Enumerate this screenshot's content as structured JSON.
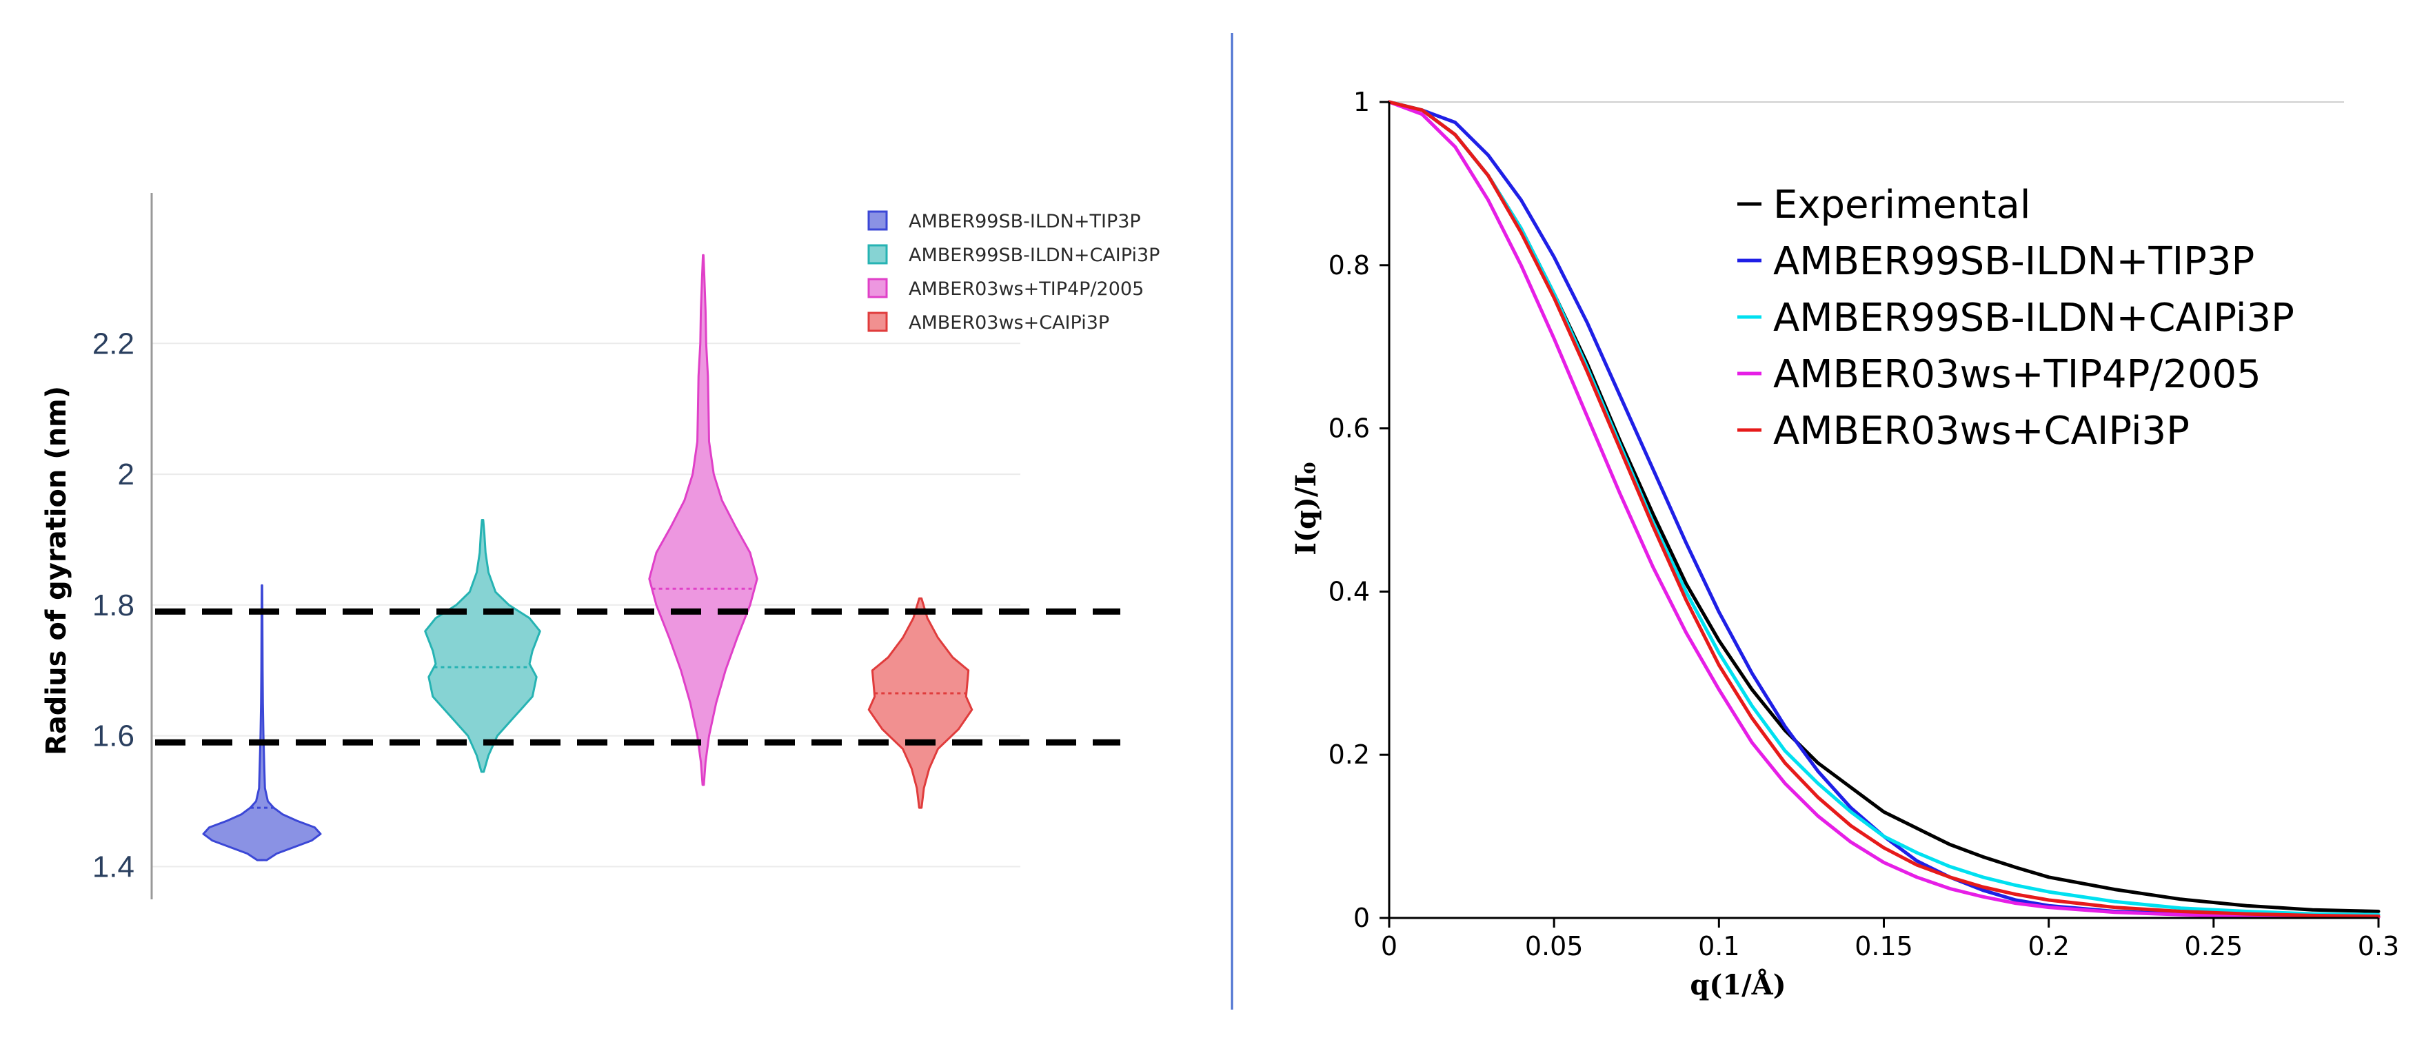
{
  "chart_data": [
    {
      "type": "violin",
      "title": "",
      "xlabel": "",
      "ylabel": "Radius of gyration (nm)",
      "ylim": [
        1.35,
        2.43
      ],
      "yticks": [
        "1.4",
        "1.6",
        "1.8",
        "2",
        "2.2"
      ],
      "grid": true,
      "legend_position": "top-right",
      "reference_lines": [
        1.59,
        1.79
      ],
      "series": [
        {
          "name": "AMBER99SB-ILDN+TIP3P",
          "color": "#3b47d6",
          "fill": "#8a92e4",
          "min": 1.41,
          "max": 1.83,
          "median": 1.49,
          "profile": [
            [
              1.41,
              0.08
            ],
            [
              1.42,
              0.25
            ],
            [
              1.43,
              0.55
            ],
            [
              1.44,
              0.85
            ],
            [
              1.45,
              1.0
            ],
            [
              1.46,
              0.9
            ],
            [
              1.47,
              0.6
            ],
            [
              1.48,
              0.35
            ],
            [
              1.49,
              0.2
            ],
            [
              1.5,
              0.1
            ],
            [
              1.52,
              0.05
            ],
            [
              1.55,
              0.04
            ],
            [
              1.6,
              0.025
            ],
            [
              1.65,
              0.015
            ],
            [
              1.7,
              0.01
            ],
            [
              1.75,
              0.008
            ],
            [
              1.8,
              0.006
            ],
            [
              1.83,
              0.003
            ]
          ]
        },
        {
          "name": "AMBER99SB-ILDN+CAIPi3P",
          "color": "#26b3b3",
          "fill": "#86d3d3",
          "min": 1.545,
          "max": 1.93,
          "median": 1.705,
          "profile": [
            [
              1.545,
              0.02
            ],
            [
              1.57,
              0.1
            ],
            [
              1.6,
              0.25
            ],
            [
              1.63,
              0.55
            ],
            [
              1.66,
              0.85
            ],
            [
              1.69,
              0.92
            ],
            [
              1.71,
              0.8
            ],
            [
              1.73,
              0.85
            ],
            [
              1.76,
              0.98
            ],
            [
              1.78,
              0.8
            ],
            [
              1.8,
              0.45
            ],
            [
              1.82,
              0.22
            ],
            [
              1.85,
              0.1
            ],
            [
              1.88,
              0.05
            ],
            [
              1.91,
              0.03
            ],
            [
              1.93,
              0.01
            ]
          ]
        },
        {
          "name": "AMBER03ws+TIP4P/2005",
          "color": "#e040c8",
          "fill": "#ed97e0",
          "min": 1.525,
          "max": 2.335,
          "median": 1.825,
          "profile": [
            [
              1.525,
              0.01
            ],
            [
              1.56,
              0.04
            ],
            [
              1.6,
              0.1
            ],
            [
              1.65,
              0.22
            ],
            [
              1.7,
              0.38
            ],
            [
              1.75,
              0.58
            ],
            [
              1.8,
              0.8
            ],
            [
              1.84,
              0.92
            ],
            [
              1.88,
              0.8
            ],
            [
              1.92,
              0.55
            ],
            [
              1.96,
              0.32
            ],
            [
              2.0,
              0.18
            ],
            [
              2.05,
              0.1
            ],
            [
              2.1,
              0.09
            ],
            [
              2.15,
              0.08
            ],
            [
              2.2,
              0.05
            ],
            [
              2.25,
              0.04
            ],
            [
              2.3,
              0.02
            ],
            [
              2.335,
              0.005
            ]
          ]
        },
        {
          "name": "AMBER03ws+CAIPi3P",
          "color": "#e03c3c",
          "fill": "#f19090",
          "min": 1.49,
          "max": 1.81,
          "median": 1.665,
          "profile": [
            [
              1.49,
              0.02
            ],
            [
              1.52,
              0.06
            ],
            [
              1.55,
              0.15
            ],
            [
              1.58,
              0.3
            ],
            [
              1.61,
              0.65
            ],
            [
              1.64,
              0.88
            ],
            [
              1.66,
              0.78
            ],
            [
              1.68,
              0.8
            ],
            [
              1.7,
              0.82
            ],
            [
              1.72,
              0.55
            ],
            [
              1.75,
              0.3
            ],
            [
              1.78,
              0.12
            ],
            [
              1.81,
              0.02
            ]
          ]
        }
      ]
    },
    {
      "type": "line",
      "title": "",
      "xlabel": "q(1/Å)",
      "ylabel": "I(q)/I₀",
      "xlim": [
        0,
        0.3
      ],
      "ylim": [
        0,
        1
      ],
      "xticks": [
        "0",
        "0.05",
        "0.1",
        "0.15",
        "0.2",
        "0.25",
        "0.3"
      ],
      "yticks": [
        "0",
        "0.2",
        "0.4",
        "0.6",
        "0.8",
        "1"
      ],
      "legend_position": "top-right",
      "x": [
        0,
        0.01,
        0.02,
        0.03,
        0.04,
        0.05,
        0.06,
        0.07,
        0.08,
        0.09,
        0.1,
        0.11,
        0.12,
        0.13,
        0.14,
        0.15,
        0.16,
        0.17,
        0.18,
        0.19,
        0.2,
        0.22,
        0.24,
        0.26,
        0.28,
        0.3
      ],
      "series": [
        {
          "name": "Experimental",
          "color": "#000000",
          "values": [
            1.0,
            0.99,
            0.96,
            0.91,
            0.845,
            0.765,
            0.68,
            0.585,
            0.495,
            0.41,
            0.34,
            0.28,
            0.23,
            0.19,
            0.16,
            0.13,
            0.11,
            0.09,
            0.075,
            0.062,
            0.05,
            0.035,
            0.023,
            0.015,
            0.01,
            0.008
          ]
        },
        {
          "name": "AMBER99SB-ILDN+TIP3P",
          "color": "#1f1fe6",
          "values": [
            1.0,
            0.99,
            0.975,
            0.935,
            0.88,
            0.81,
            0.73,
            0.64,
            0.55,
            0.46,
            0.375,
            0.3,
            0.235,
            0.18,
            0.135,
            0.1,
            0.07,
            0.05,
            0.034,
            0.022,
            0.015,
            0.008,
            0.005,
            0.003,
            0.002,
            0.001
          ]
        },
        {
          "name": "AMBER99SB-ILDN+CAIPi3P",
          "color": "#00e0f0",
          "values": [
            1.0,
            0.99,
            0.96,
            0.91,
            0.845,
            0.765,
            0.675,
            0.58,
            0.485,
            0.4,
            0.325,
            0.26,
            0.205,
            0.165,
            0.13,
            0.1,
            0.08,
            0.063,
            0.05,
            0.04,
            0.032,
            0.02,
            0.012,
            0.008,
            0.005,
            0.004
          ]
        },
        {
          "name": "AMBER03ws+TIP4P/2005",
          "color": "#e61ee6",
          "values": [
            1.0,
            0.985,
            0.945,
            0.88,
            0.8,
            0.71,
            0.615,
            0.52,
            0.43,
            0.35,
            0.28,
            0.215,
            0.165,
            0.125,
            0.093,
            0.068,
            0.05,
            0.036,
            0.026,
            0.018,
            0.013,
            0.007,
            0.004,
            0.002,
            0.001,
            0.001
          ]
        },
        {
          "name": "AMBER03ws+CAIPi3P",
          "color": "#e61a1a",
          "values": [
            1.0,
            0.99,
            0.96,
            0.91,
            0.84,
            0.76,
            0.67,
            0.575,
            0.48,
            0.39,
            0.31,
            0.245,
            0.19,
            0.148,
            0.113,
            0.086,
            0.065,
            0.05,
            0.038,
            0.029,
            0.022,
            0.013,
            0.008,
            0.005,
            0.003,
            0.002
          ]
        }
      ]
    }
  ],
  "divider_color": "#4a6fd0"
}
